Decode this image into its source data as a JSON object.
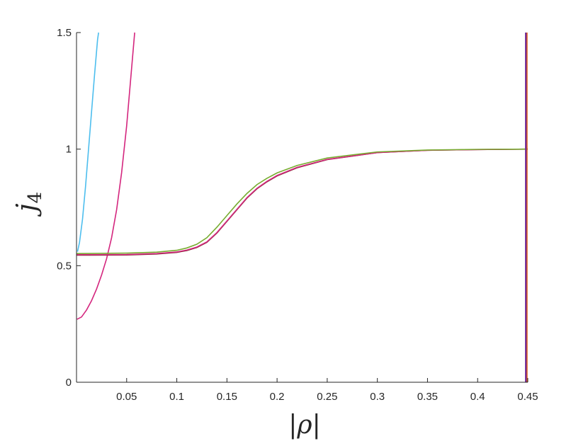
{
  "chart_data": {
    "type": "line",
    "title": "",
    "xlabel": "|ρ|",
    "ylabel": "j",
    "ylabel_subscript": "4",
    "xlim": [
      0,
      0.45
    ],
    "ylim": [
      0,
      1.5
    ],
    "grid": false,
    "legend": "none",
    "x_ticks": [
      0.05,
      0.1,
      0.15,
      0.2,
      0.25,
      0.3,
      0.35,
      0.4,
      0.45
    ],
    "x_tick_labels": [
      "0.05",
      "0.1",
      "0.15",
      "0.2",
      "0.25",
      "0.3",
      "0.35",
      "0.4",
      "0.45"
    ],
    "y_ticks": [
      0,
      0.5,
      1,
      1.5
    ],
    "y_tick_labels": [
      "0",
      "0.5",
      "1",
      "1.5"
    ],
    "series": [
      {
        "color": "#4DBEEE",
        "x": [
          0.001,
          0.003,
          0.006,
          0.009,
          0.012,
          0.015,
          0.018,
          0.021,
          0.022
        ],
        "y": [
          0.56,
          0.6,
          0.7,
          0.84,
          1.0,
          1.16,
          1.32,
          1.47,
          1.5
        ]
      },
      {
        "color": "#D4267E",
        "x": [
          0.0005,
          0.005,
          0.01,
          0.015,
          0.02,
          0.025,
          0.03,
          0.035,
          0.04,
          0.045,
          0.05,
          0.055,
          0.058
        ],
        "y": [
          0.27,
          0.28,
          0.31,
          0.35,
          0.4,
          0.46,
          0.53,
          0.62,
          0.74,
          0.9,
          1.1,
          1.35,
          1.5
        ]
      },
      {
        "color": "#7E2F2F",
        "x": [
          0.0,
          0.05,
          0.08,
          0.1,
          0.11,
          0.12,
          0.13,
          0.14,
          0.15,
          0.16,
          0.17,
          0.18,
          0.19,
          0.2,
          0.22,
          0.25,
          0.3,
          0.35,
          0.4,
          0.45
        ],
        "y": [
          0.545,
          0.546,
          0.55,
          0.557,
          0.565,
          0.578,
          0.6,
          0.64,
          0.69,
          0.74,
          0.79,
          0.83,
          0.86,
          0.885,
          0.92,
          0.955,
          0.985,
          0.995,
          0.998,
          1.0
        ]
      },
      {
        "color": "#D4267E",
        "x": [
          0.0,
          0.05,
          0.08,
          0.1,
          0.11,
          0.12,
          0.13,
          0.14,
          0.15,
          0.16,
          0.17,
          0.18,
          0.19,
          0.2,
          0.22,
          0.25,
          0.3,
          0.35,
          0.4,
          0.45
        ],
        "y": [
          0.547,
          0.548,
          0.552,
          0.559,
          0.567,
          0.58,
          0.602,
          0.642,
          0.692,
          0.742,
          0.792,
          0.832,
          0.862,
          0.887,
          0.922,
          0.956,
          0.985,
          0.995,
          0.998,
          1.0
        ]
      },
      {
        "color": "#77AC30",
        "x": [
          0.0,
          0.05,
          0.08,
          0.1,
          0.11,
          0.12,
          0.13,
          0.14,
          0.15,
          0.16,
          0.17,
          0.18,
          0.19,
          0.2,
          0.22,
          0.25,
          0.3,
          0.35,
          0.4,
          0.45
        ],
        "y": [
          0.552,
          0.554,
          0.558,
          0.566,
          0.576,
          0.592,
          0.62,
          0.665,
          0.715,
          0.765,
          0.81,
          0.848,
          0.875,
          0.898,
          0.93,
          0.962,
          0.988,
          0.996,
          0.999,
          1.0
        ]
      },
      {
        "color": "#0000FF",
        "x": [
          0.4485,
          0.4485
        ],
        "y": [
          0.0,
          1.5
        ]
      },
      {
        "color": "#D95319",
        "x": [
          0.4492,
          0.4492
        ],
        "y": [
          0.0,
          1.5
        ]
      },
      {
        "color": "#7E2F8E",
        "x": [
          0.4478,
          0.4478
        ],
        "y": [
          0.0,
          1.5
        ]
      }
    ]
  }
}
